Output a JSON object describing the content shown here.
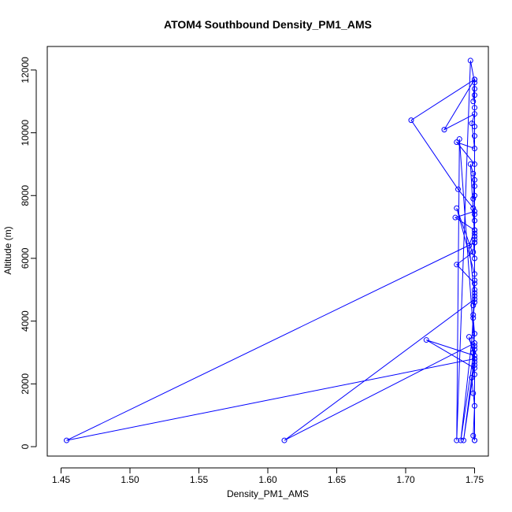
{
  "chart_data": {
    "type": "line",
    "title": "ATOM4 Southbound Density_PM1_AMS",
    "xlabel": "Density_PM1_AMS",
    "ylabel": "Altitude (m)",
    "xlim": [
      1.44,
      1.76
    ],
    "ylim": [
      -300,
      12750
    ],
    "xticks": [
      1.45,
      1.5,
      1.55,
      1.6,
      1.65,
      1.7,
      1.75
    ],
    "xtick_labels": [
      "1.45",
      "1.50",
      "1.55",
      "1.60",
      "1.65",
      "1.70",
      "1.75"
    ],
    "yticks": [
      0,
      2000,
      4000,
      6000,
      8000,
      10000,
      12000
    ],
    "ytick_labels": [
      "0",
      "2000",
      "4000",
      "6000",
      "8000",
      "10000",
      "12000"
    ],
    "grid": false,
    "marker": "open-circle",
    "series": [
      {
        "color": "#0000ff",
        "x": [
          1.75,
          1.749,
          1.75,
          1.749,
          1.748,
          1.75,
          1.746,
          1.749,
          1.75,
          1.749,
          1.75,
          1.75,
          1.737,
          1.749,
          1.75,
          1.75,
          1.749,
          1.738,
          1.704,
          1.75,
          1.749,
          1.75,
          1.75,
          1.75,
          1.728,
          1.75,
          1.748,
          1.75,
          1.737,
          1.75,
          1.75,
          1.749,
          1.75,
          1.75,
          1.736,
          1.75,
          1.75,
          1.75,
          1.737,
          1.75,
          1.75,
          1.749,
          1.75,
          1.746,
          1.75,
          1.75,
          1.747,
          1.749,
          1.75,
          1.75,
          1.75,
          1.454,
          1.75,
          1.75,
          1.74,
          1.748,
          1.75,
          1.75,
          1.612,
          1.75,
          1.749,
          1.75,
          1.715,
          1.75,
          1.742,
          1.75,
          1.75,
          1.75,
          1.739,
          1.737,
          1.747,
          1.75,
          1.75,
          1.75,
          1.75,
          1.75,
          1.75,
          1.75,
          1.749,
          1.75,
          1.75
        ],
        "y": [
          200,
          350,
          1300,
          1700,
          2200,
          2800,
          3500,
          3000,
          3600,
          4100,
          4600,
          5200,
          5800,
          6200,
          6700,
          7200,
          7600,
          8200,
          10400,
          11700,
          11000,
          11400,
          11200,
          11700,
          10100,
          10600,
          10300,
          9500,
          9700,
          9000,
          8500,
          7900,
          8300,
          7500,
          7300,
          6900,
          6500,
          6000,
          7600,
          5500,
          5000,
          4500,
          4800,
          6400,
          6900,
          6700,
          9000,
          8700,
          7400,
          6800,
          6500,
          200,
          2800,
          3200,
          200,
          3400,
          4900,
          4700,
          200,
          3300,
          3000,
          2500,
          3400,
          2900,
          200,
          2600,
          2700,
          3100,
          9800,
          200,
          12300,
          11600,
          10800,
          10200,
          9900,
          8000,
          6600,
          5300,
          4200,
          2300,
          200
        ]
      }
    ]
  }
}
